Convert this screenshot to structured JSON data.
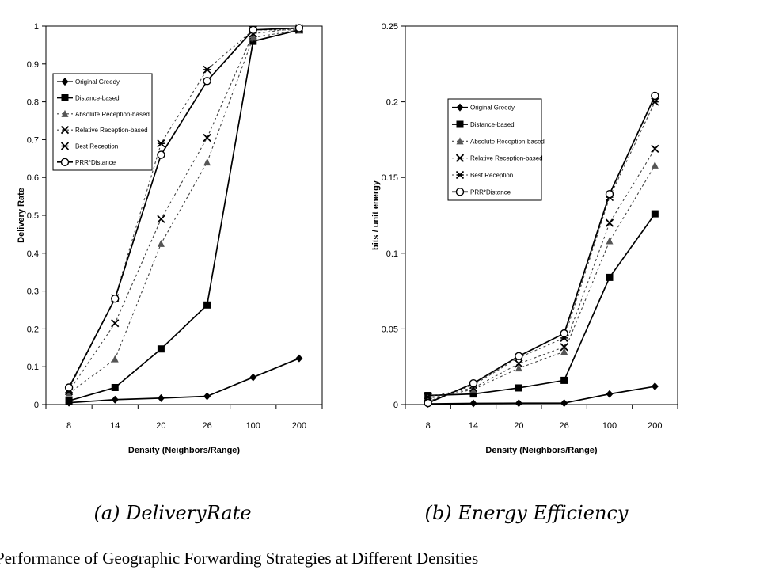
{
  "caption": "Performance of Geographic Forwarding Strategies at Different Densities",
  "chart_data": [
    {
      "type": "line",
      "subcaption": "(a) DeliveryRate",
      "xlabel": "Density (Neighbors/Range)",
      "ylabel": "Delivery Rate",
      "categories": [
        "8",
        "14",
        "20",
        "26",
        "100",
        "200"
      ],
      "ylim": [
        0,
        1
      ],
      "yticks": [
        "0",
        "0.1",
        "0.2",
        "0.3",
        "0.4",
        "0.5",
        "0.6",
        "0.7",
        "0.8",
        "0.9",
        "1"
      ],
      "grid": false,
      "legend_position": "top-left",
      "series": [
        {
          "name": "Original Greedy",
          "values": [
            0.005,
            0.013,
            0.017,
            0.022,
            0.072,
            0.122
          ]
        },
        {
          "name": "Distance-based",
          "values": [
            0.01,
            0.045,
            0.147,
            0.263,
            0.96,
            0.99
          ]
        },
        {
          "name": "Absolute Reception-based",
          "values": [
            0.03,
            0.12,
            0.425,
            0.64,
            0.97,
            0.99
          ]
        },
        {
          "name": "Relative Reception-based",
          "values": [
            0.035,
            0.215,
            0.49,
            0.705,
            0.98,
            0.995
          ]
        },
        {
          "name": "Best Reception",
          "values": [
            0.04,
            0.282,
            0.69,
            0.885,
            0.99,
            0.99
          ]
        },
        {
          "name": "PRR*Distance",
          "values": [
            0.045,
            0.28,
            0.66,
            0.855,
            0.99,
            0.995
          ]
        }
      ]
    },
    {
      "type": "line",
      "subcaption": "(b) Energy Efficiency",
      "xlabel": "Density (Neighbors/Range)",
      "ylabel": "bits / unit energy",
      "categories": [
        "8",
        "14",
        "20",
        "26",
        "100",
        "200"
      ],
      "ylim": [
        0,
        0.25
      ],
      "yticks": [
        "0",
        "0.05",
        "0.1",
        "0.15",
        "0.2",
        "0.25"
      ],
      "grid": false,
      "legend_position": "top-left",
      "series": [
        {
          "name": "Original Greedy",
          "values": [
            0.0005,
            0.0008,
            0.0009,
            0.001,
            0.007,
            0.012
          ]
        },
        {
          "name": "Distance-based",
          "values": [
            0.006,
            0.007,
            0.011,
            0.016,
            0.084,
            0.126
          ]
        },
        {
          "name": "Absolute Reception-based",
          "values": [
            0.004,
            0.01,
            0.024,
            0.035,
            0.108,
            0.158
          ]
        },
        {
          "name": "Relative Reception-based",
          "values": [
            0.005,
            0.011,
            0.027,
            0.038,
            0.12,
            0.169
          ]
        },
        {
          "name": "Best Reception",
          "values": [
            0.002,
            0.013,
            0.031,
            0.044,
            0.137,
            0.2
          ]
        },
        {
          "name": "PRR*Distance",
          "values": [
            0.001,
            0.014,
            0.032,
            0.047,
            0.139,
            0.204
          ]
        }
      ]
    }
  ]
}
